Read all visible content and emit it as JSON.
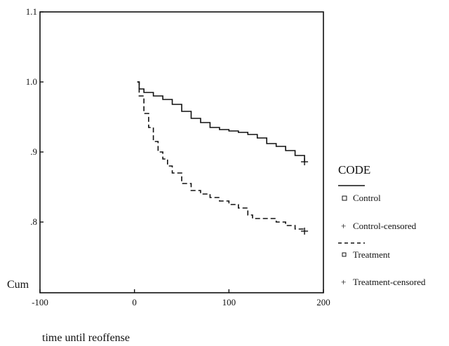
{
  "chart_data": {
    "type": "line",
    "title": "",
    "xlabel": "time until reoffense",
    "ylabel": "Cum",
    "xlim": [
      -100,
      200
    ],
    "ylim": [
      0.76,
      1.1
    ],
    "x_ticks": [
      -100,
      0,
      100,
      200
    ],
    "x_tick_labels": [
      "-100",
      "0",
      "100",
      "200"
    ],
    "y_ticks": [
      0.8,
      0.9,
      1.0,
      1.1
    ],
    "y_tick_labels": [
      ".8",
      ".9",
      "1.0",
      "1.1"
    ],
    "grid": false,
    "legend": {
      "placement": "right",
      "title": "CODE",
      "entries": [
        "Control",
        "Control-censored",
        "Treatment",
        "Treatment-censored"
      ]
    },
    "series": [
      {
        "name": "Control",
        "step": true,
        "dash": "solid",
        "color": "#111111",
        "x": [
          3,
          5,
          10,
          20,
          30,
          40,
          50,
          60,
          70,
          80,
          90,
          100,
          110,
          120,
          130,
          140,
          150,
          160,
          170,
          180
        ],
        "y": [
          1.0,
          0.99,
          0.985,
          0.98,
          0.975,
          0.968,
          0.958,
          0.948,
          0.942,
          0.935,
          0.932,
          0.93,
          0.928,
          0.925,
          0.92,
          0.912,
          0.908,
          0.902,
          0.895,
          0.886
        ]
      },
      {
        "name": "Treatment",
        "step": true,
        "dash": "dashed",
        "color": "#111111",
        "x": [
          3,
          5,
          10,
          15,
          20,
          25,
          30,
          35,
          40,
          50,
          60,
          70,
          80,
          90,
          100,
          110,
          120,
          125,
          140,
          150,
          160,
          170,
          180
        ],
        "y": [
          1.0,
          0.98,
          0.955,
          0.935,
          0.915,
          0.9,
          0.89,
          0.88,
          0.87,
          0.855,
          0.845,
          0.84,
          0.835,
          0.83,
          0.825,
          0.82,
          0.81,
          0.805,
          0.805,
          0.8,
          0.795,
          0.79,
          0.787
        ]
      }
    ],
    "censored_points": [
      {
        "name": "Control-censored",
        "x": 180,
        "y": 0.886
      },
      {
        "name": "Treatment-censored",
        "x": 180,
        "y": 0.787
      }
    ]
  }
}
